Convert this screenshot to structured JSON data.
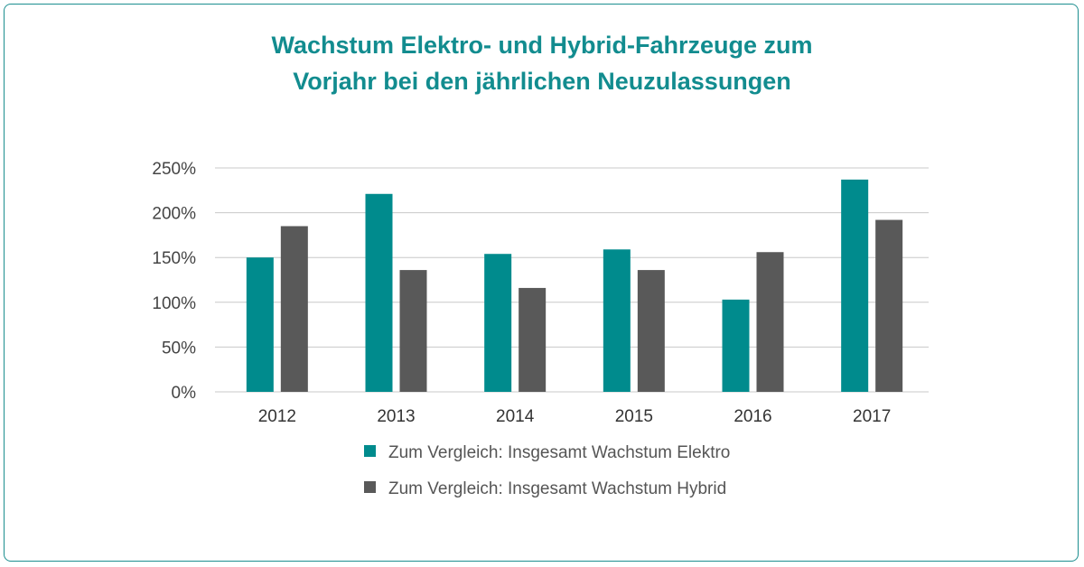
{
  "colors": {
    "border": "#1c8e8f",
    "title": "#128c8f",
    "elektro": "#008b8d",
    "hybrid": "#595959",
    "grid": "#c8c8c8"
  },
  "chart_data": {
    "type": "bar",
    "title_lines": [
      "Wachstum Elektro- und Hybrid-Fahrzeuge zum",
      "Vorjahr bei den jährlichen Neuzulassungen"
    ],
    "categories": [
      "2012",
      "2013",
      "2014",
      "2015",
      "2016",
      "2017"
    ],
    "series": [
      {
        "name": "Zum Vergleich: Insgesamt Wachstum Elektro",
        "values": [
          150,
          221,
          154,
          159,
          103,
          237
        ]
      },
      {
        "name": "Zum Vergleich: Insgesamt Wachstum Hybrid",
        "values": [
          185,
          136,
          116,
          136,
          156,
          192
        ]
      }
    ],
    "y_ticks": [
      "0%",
      "50%",
      "100%",
      "150%",
      "200%",
      "250%"
    ],
    "ylim": [
      0,
      250
    ],
    "grid": true,
    "legend_position": "bottom"
  }
}
